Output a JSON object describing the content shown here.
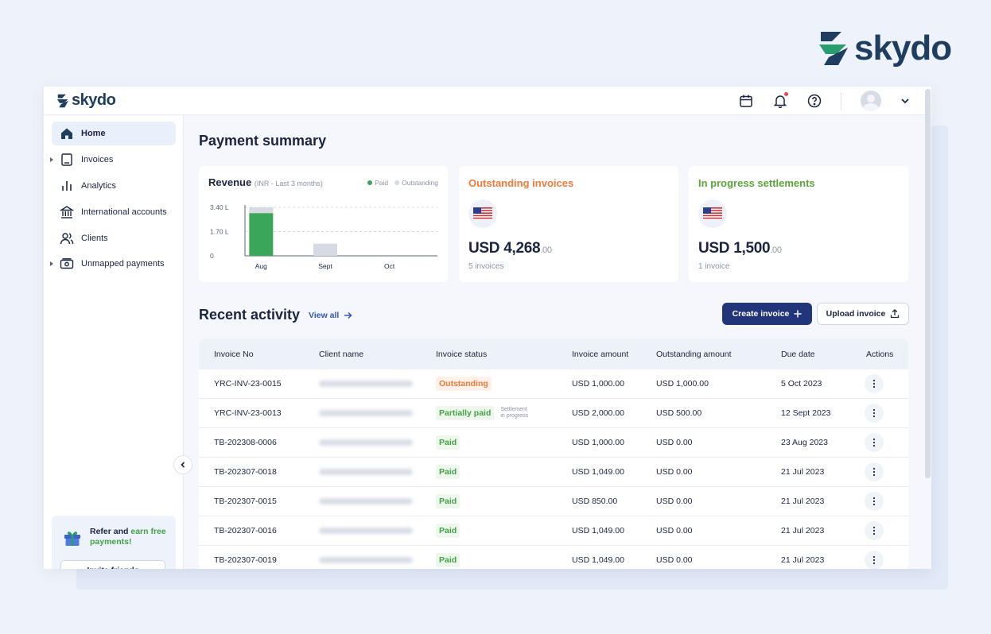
{
  "brand": {
    "name": "skydo"
  },
  "nav": [
    {
      "label": "Home",
      "icon": "home-icon",
      "active": true
    },
    {
      "label": "Invoices",
      "icon": "invoice-icon",
      "caret": true
    },
    {
      "label": "Analytics",
      "icon": "analytics-icon"
    },
    {
      "label": "International accounts",
      "icon": "bank-icon"
    },
    {
      "label": "Clients",
      "icon": "clients-icon"
    },
    {
      "label": "Unmapped payments",
      "icon": "cash-icon",
      "caret": true
    }
  ],
  "refer": {
    "text_prefix": "Refer and",
    "text_highlight": "earn free",
    "text_suffix": "payments!",
    "button": "Invite friends"
  },
  "page_title": "Payment summary",
  "revenue": {
    "title": "Revenue",
    "subtitle": "(INR - Last 3 months)",
    "legend_paid": "Paid",
    "legend_outstanding": "Outstanding",
    "y_labels": [
      "3.40 L",
      "1.70 L",
      "0"
    ]
  },
  "chart_data": {
    "type": "bar",
    "title": "Revenue",
    "subtitle": "(INR - Last 3 months)",
    "categories": [
      "Aug",
      "Sept",
      "Oct"
    ],
    "series": [
      {
        "name": "Paid",
        "values": [
          3.0,
          0,
          0
        ],
        "color": "#3aa65a"
      },
      {
        "name": "Outstanding",
        "values": [
          0.4,
          0.85,
          0
        ],
        "color": "#d6dae2"
      }
    ],
    "ylim": [
      0,
      3.4
    ],
    "yticks": [
      "0",
      "1.70 L",
      "3.40 L"
    ],
    "stacked": true,
    "legend": "top-right",
    "grid": true
  },
  "outstanding": {
    "title": "Outstanding invoices",
    "amount": "USD 4,268",
    "cents": ".00",
    "count": "5 invoices"
  },
  "progress": {
    "title": "In progress settlements",
    "amount": "USD 1,500",
    "cents": ".00",
    "count": "1 invoice"
  },
  "recent": {
    "title": "Recent activity",
    "view_all": "View all",
    "create": "Create invoice",
    "upload": "Upload invoice"
  },
  "columns": [
    "Invoice No",
    "Client name",
    "Invoice status",
    "Invoice amount",
    "Outstanding amount",
    "Due date",
    "Actions"
  ],
  "rows": [
    {
      "invoice": "YRC-INV-23-0015",
      "status": "Outstanding",
      "status_type": "outstanding",
      "amount": "USD 1,000.00",
      "outstanding": "USD 1,000.00",
      "due": "5 Oct 2023"
    },
    {
      "invoice": "YRC-INV-23-0013",
      "status": "Partially paid",
      "status_type": "partial",
      "note_line1": "Settlement",
      "note_line2": "in progress",
      "amount": "USD 2,000.00",
      "outstanding": "USD 500.00",
      "due": "12 Sept 2023"
    },
    {
      "invoice": "TB-202308-0006",
      "status": "Paid",
      "status_type": "paid",
      "amount": "USD 1,000.00",
      "outstanding": "USD 0.00",
      "due": "23 Aug 2023"
    },
    {
      "invoice": "TB-202307-0018",
      "status": "Paid",
      "status_type": "paid",
      "amount": "USD 1,049.00",
      "outstanding": "USD 0.00",
      "due": "21 Jul 2023"
    },
    {
      "invoice": "TB-202307-0015",
      "status": "Paid",
      "status_type": "paid",
      "amount": "USD 850.00",
      "outstanding": "USD 0.00",
      "due": "21 Jul 2023"
    },
    {
      "invoice": "TB-202307-0016",
      "status": "Paid",
      "status_type": "paid",
      "amount": "USD 1,049.00",
      "outstanding": "USD 0.00",
      "due": "21 Jul 2023"
    },
    {
      "invoice": "TB-202307-0019",
      "status": "Paid",
      "status_type": "paid",
      "amount": "USD 1,049.00",
      "outstanding": "USD 0.00",
      "due": "21 Jul 2023"
    }
  ]
}
